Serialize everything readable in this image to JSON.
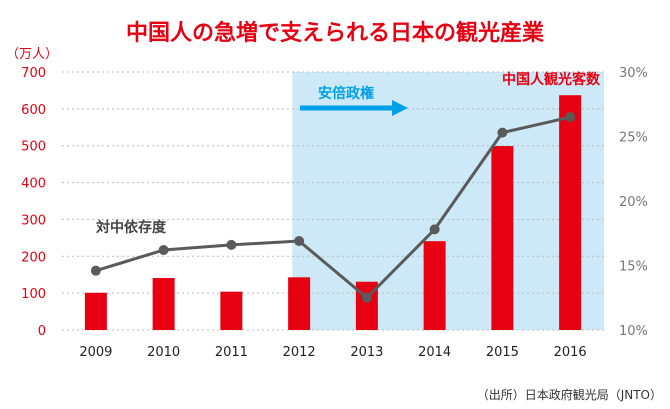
{
  "chart_data": {
    "type": "bar+line",
    "title": "中国人の急増で支えられる日本の観光産業",
    "left_axis": {
      "unit_label": "（万人）",
      "ticks": [
        0,
        100,
        200,
        300,
        400,
        500,
        600,
        700
      ],
      "ylim": [
        0,
        700
      ]
    },
    "right_axis": {
      "ticks": [
        "10%",
        "15%",
        "20%",
        "25%",
        "30%"
      ],
      "ylim": [
        10,
        30
      ]
    },
    "categories": [
      "2009",
      "2010",
      "2011",
      "2012",
      "2013",
      "2014",
      "2015",
      "2016"
    ],
    "bar_series": {
      "name": "中国人観光客数",
      "values": [
        101,
        141,
        104,
        143,
        131,
        241,
        499,
        637
      ],
      "color": "#e60012"
    },
    "line_series": {
      "name": "対中依存度",
      "values": [
        14.6,
        16.2,
        16.6,
        16.9,
        12.5,
        17.8,
        25.3,
        26.5
      ],
      "color": "#5a5a5a"
    },
    "shaded_period": {
      "label": "安倍政権",
      "from": "2012",
      "to": "2016",
      "color": "#cde9f7",
      "arrow_color": "#00a0e9"
    },
    "source": "（出所）日本政府観光局（JNTO）",
    "title_color": "#e60012",
    "left_tick_color": "#e60012",
    "right_tick_color": "#777777"
  }
}
